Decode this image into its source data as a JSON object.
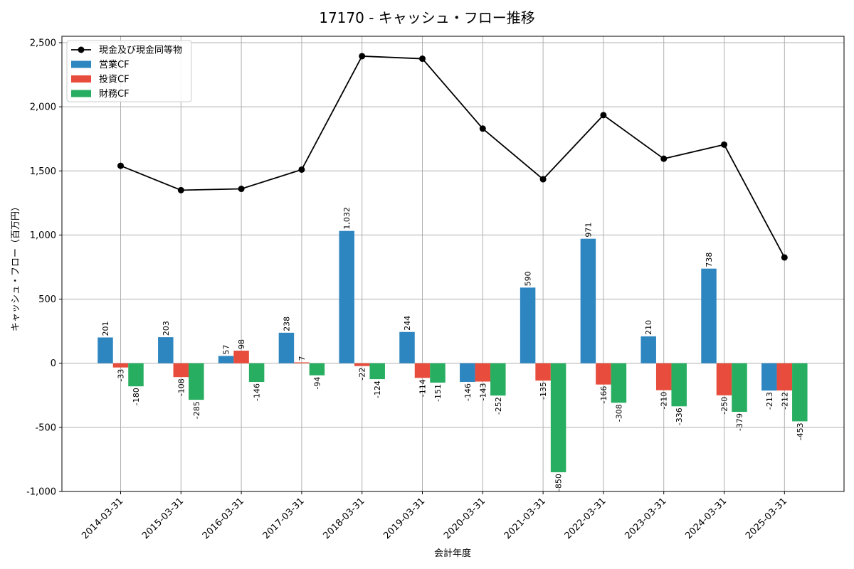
{
  "chart_data": {
    "type": "bar",
    "title": "17170 - キャッシュ・フロー推移",
    "xlabel": "会計年度",
    "ylabel": "キャッシュ・フロー（百万円）",
    "ylim": [
      -1000,
      2550
    ],
    "yticks": [
      -1000,
      -500,
      0,
      500,
      1000,
      1500,
      2000,
      2500
    ],
    "ytick_labels": [
      "-1,000",
      "-500",
      "0",
      "500",
      "1,000",
      "1,500",
      "2,000",
      "2,500"
    ],
    "grid": true,
    "legend_position": "top-left",
    "categories": [
      "2014-03-31",
      "2015-03-31",
      "2016-03-31",
      "2017-03-31",
      "2018-03-31",
      "2019-03-31",
      "2020-03-31",
      "2021-03-31",
      "2022-03-31",
      "2023-03-31",
      "2024-03-31",
      "2025-03-31"
    ],
    "series": [
      {
        "name": "営業CF",
        "kind": "bar",
        "color": "#2e86c1",
        "values": [
          201,
          203,
          57,
          238,
          1032,
          244,
          -146,
          590,
          971,
          210,
          738,
          -213
        ],
        "labels": [
          "201",
          "203",
          "57",
          "238",
          "1,032",
          "244",
          "-146",
          "590",
          "971",
          "210",
          "738",
          "-213"
        ]
      },
      {
        "name": "投資CF",
        "kind": "bar",
        "color": "#e74c3c",
        "values": [
          -33,
          -108,
          98,
          7,
          -22,
          -114,
          -143,
          -135,
          -166,
          -210,
          -250,
          -212
        ],
        "labels": [
          "-33",
          "-108",
          "98",
          "7",
          "-22",
          "-114",
          "-143",
          "-135",
          "-166",
          "-210",
          "-250",
          "-212"
        ]
      },
      {
        "name": "財務CF",
        "kind": "bar",
        "color": "#27ae60",
        "values": [
          -180,
          -285,
          -146,
          -94,
          -124,
          -151,
          -252,
          -850,
          -308,
          -336,
          -379,
          -453
        ],
        "labels": [
          "-180",
          "-285",
          "-146",
          "-94",
          "-124",
          "-151",
          "-252",
          "-850",
          "-308",
          "-336",
          "-379",
          "-453"
        ]
      },
      {
        "name": "現金及び現金同等物",
        "kind": "line",
        "color": "#000000",
        "values": [
          1540,
          1350,
          1360,
          1510,
          2395,
          2375,
          1830,
          1435,
          1935,
          1595,
          1705,
          825
        ]
      }
    ]
  }
}
